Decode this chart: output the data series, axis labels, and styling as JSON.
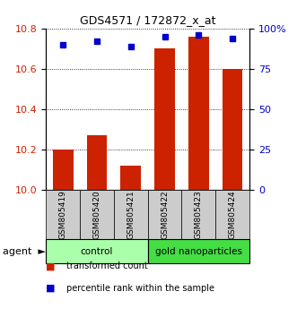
{
  "title": "GDS4571 / 172872_x_at",
  "categories": [
    "GSM805419",
    "GSM805420",
    "GSM805421",
    "GSM805422",
    "GSM805423",
    "GSM805424"
  ],
  "bar_values": [
    10.2,
    10.27,
    10.12,
    10.7,
    10.76,
    10.6
  ],
  "percentile_values": [
    90,
    92,
    89,
    95,
    96,
    94
  ],
  "ylim_left": [
    10.0,
    10.8
  ],
  "ylim_right": [
    0,
    100
  ],
  "yticks_left": [
    10.0,
    10.2,
    10.4,
    10.6,
    10.8
  ],
  "yticks_right": [
    0,
    25,
    50,
    75,
    100
  ],
  "ytick_labels_right": [
    "0",
    "25",
    "50",
    "75",
    "100%"
  ],
  "bar_color": "#cc2200",
  "dot_color": "#0000cc",
  "control_color": "#aaffaa",
  "nanoparticles_color": "#44dd44",
  "sample_bg_color": "#cccccc",
  "group_border_color": "#000000",
  "groups": [
    {
      "label": "control",
      "start": 0,
      "end": 3
    },
    {
      "label": "gold nanoparticles",
      "start": 3,
      "end": 6
    }
  ],
  "legend_items": [
    {
      "label": "transformed count",
      "color": "#cc2200"
    },
    {
      "label": "percentile rank within the sample",
      "color": "#0000cc"
    }
  ],
  "agent_label": "agent",
  "figsize": [
    3.31,
    3.54
  ],
  "dpi": 100
}
